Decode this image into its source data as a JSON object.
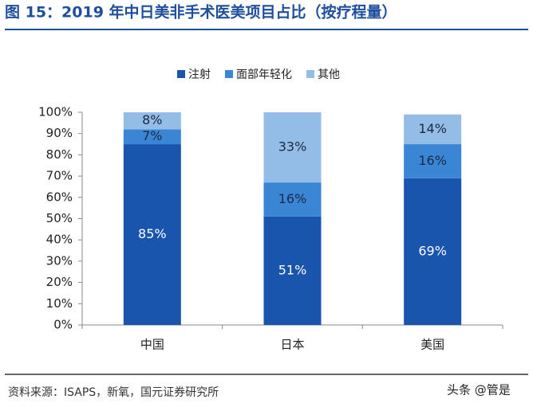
{
  "chart_data": {
    "type": "stacked_bar",
    "title": "图 15：2019 年中日美非手术医美项目占比（按疗程量）",
    "categories": [
      "中国",
      "日本",
      "美国"
    ],
    "series": [
      {
        "name": "注射",
        "color": "#1a55ad",
        "label_color": "#ffffff",
        "values": [
          85,
          51,
          69
        ],
        "value_labels": [
          "85%",
          "51%",
          "69%"
        ]
      },
      {
        "name": "面部年轻化",
        "color": "#3b86d4",
        "label_color": "#1b2a44",
        "values": [
          7,
          16,
          16
        ],
        "value_labels": [
          "7%",
          "16%",
          "16%"
        ]
      },
      {
        "name": "其他",
        "color": "#93bce6",
        "label_color": "#1b2a44",
        "values": [
          8,
          33,
          14
        ],
        "value_labels": [
          "8%",
          "33%",
          "14%"
        ]
      }
    ],
    "ylim": [
      0,
      100
    ],
    "yticks": [
      {
        "value": 0,
        "label": "0%"
      },
      {
        "value": 10,
        "label": "10%"
      },
      {
        "value": 20,
        "label": "20%"
      },
      {
        "value": 30,
        "label": "30%"
      },
      {
        "value": 40,
        "label": "40%"
      },
      {
        "value": 50,
        "label": "50%"
      },
      {
        "value": 60,
        "label": "60%"
      },
      {
        "value": 70,
        "label": "70%"
      },
      {
        "value": 80,
        "label": "80%"
      },
      {
        "value": 90,
        "label": "90%"
      },
      {
        "value": 100,
        "label": "100%"
      }
    ],
    "legend": "top",
    "source": "资料来源：ISAPS，新氧，国元证券研究所",
    "watermark": "头条 @管是"
  }
}
